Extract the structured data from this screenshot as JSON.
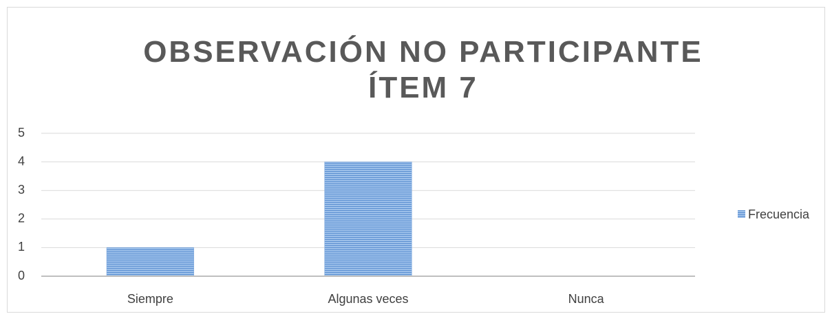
{
  "chart_data": {
    "type": "bar",
    "title": "OBSERVACIÓN NO PARTICIPANTE ÍTEM 7",
    "categories": [
      "Siempre",
      "Algunas veces",
      "Nunca"
    ],
    "series": [
      {
        "name": "Frecuencia",
        "color": "#7aa6dc",
        "values": [
          1,
          4,
          0
        ]
      }
    ],
    "ylim": [
      0,
      5
    ],
    "yticks": [
      0,
      1,
      2,
      3,
      4,
      5
    ],
    "grid": true,
    "legend": "right"
  }
}
